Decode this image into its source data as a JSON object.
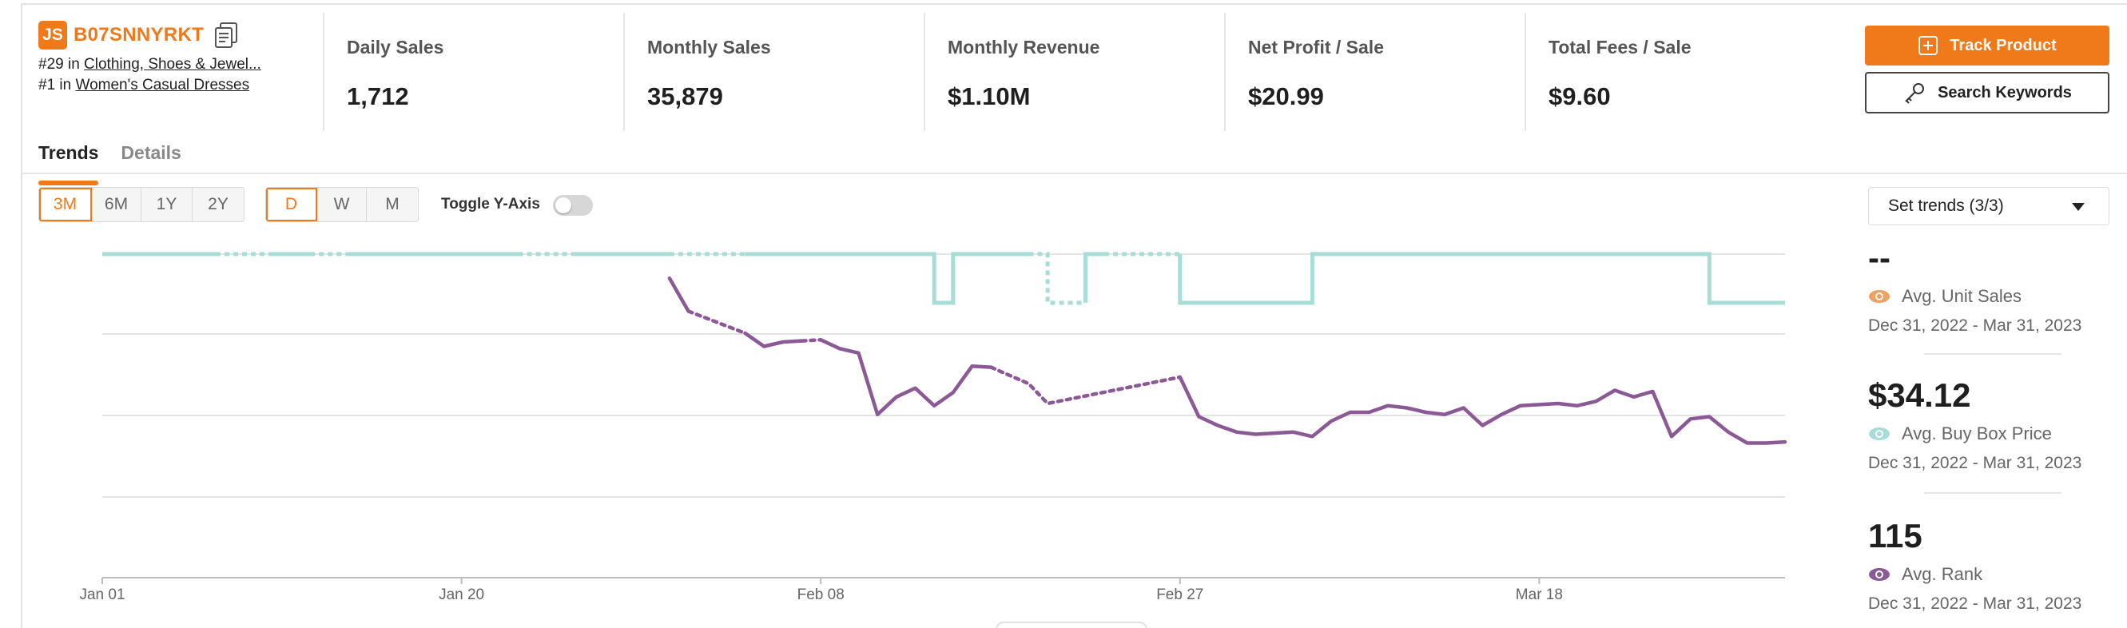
{
  "product": {
    "logo": "JS",
    "asin": "B07SNNYRKT",
    "rank1_prefix": "#29 in ",
    "rank1_category": "Clothing, Shoes & Jewel...",
    "rank2_prefix": "#1 in ",
    "rank2_category": "Women's Casual Dresses"
  },
  "metrics": [
    {
      "label": "Daily Sales",
      "value": "1,712"
    },
    {
      "label": "Monthly Sales",
      "value": "35,879"
    },
    {
      "label": "Monthly Revenue",
      "value": "$1.10M"
    },
    {
      "label": "Net Profit / Sale",
      "value": "$20.99"
    },
    {
      "label": "Total Fees / Sale",
      "value": "$9.60"
    }
  ],
  "actions": {
    "track": "Track Product",
    "search": "Search Keywords"
  },
  "tabs": [
    {
      "label": "Trends",
      "active": true
    },
    {
      "label": "Details",
      "active": false
    }
  ],
  "range_options": [
    "3M",
    "6M",
    "1Y",
    "2Y"
  ],
  "range_selected": "3M",
  "interval_options": [
    "D",
    "W",
    "M"
  ],
  "interval_selected": "D",
  "toggle_label": "Toggle Y-Axis",
  "trends_dropdown": "Set trends (3/3)",
  "stats": [
    {
      "value": "--",
      "name": "Avg. Unit Sales",
      "range": "Dec 31, 2022 - Mar 31, 2023",
      "color": "#f0a060"
    },
    {
      "value": "$34.12",
      "name": "Avg. Buy Box Price",
      "range": "Dec 31, 2022 - Mar 31, 2023",
      "color": "#a8dcd6"
    },
    {
      "value": "115",
      "name": "Avg. Rank",
      "range": "Dec 31, 2022 - Mar 31, 2023",
      "color": "#8b5a96"
    }
  ],
  "colors": {
    "accent": "#f07a1a",
    "price": "#a8dcd6",
    "rank": "#8b5a96"
  },
  "chart_data": {
    "type": "line",
    "x_tick_labels": [
      "Jan 01",
      "Jan 20",
      "Feb 08",
      "Feb 27",
      "Mar 18"
    ],
    "x_range": [
      "2023-01-01",
      "2023-03-31"
    ],
    "grid": true,
    "series": [
      {
        "name": "Avg. Buy Box Price",
        "color": "#a8dcd6",
        "step": true,
        "segments": [
          {
            "dashed": false,
            "points": [
              [
                "2023-01-01",
                1
              ],
              [
                "2023-01-07",
                1
              ]
            ]
          },
          {
            "dashed": true,
            "points": [
              [
                "2023-01-07",
                1
              ],
              [
                "2023-01-10",
                1
              ]
            ]
          },
          {
            "dashed": false,
            "points": [
              [
                "2023-01-10",
                1
              ],
              [
                "2023-01-12",
                1
              ]
            ]
          },
          {
            "dashed": true,
            "points": [
              [
                "2023-01-12",
                1
              ],
              [
                "2023-01-14",
                1
              ]
            ]
          },
          {
            "dashed": false,
            "points": [
              [
                "2023-01-14",
                1
              ],
              [
                "2023-01-23",
                1
              ]
            ]
          },
          {
            "dashed": true,
            "points": [
              [
                "2023-01-23",
                1
              ],
              [
                "2023-01-26",
                1
              ]
            ]
          },
          {
            "dashed": false,
            "points": [
              [
                "2023-01-26",
                1
              ],
              [
                "2023-01-31",
                1
              ]
            ]
          },
          {
            "dashed": true,
            "points": [
              [
                "2023-01-31",
                1
              ],
              [
                "2023-02-04",
                1
              ]
            ]
          },
          {
            "dashed": false,
            "points": [
              [
                "2023-02-04",
                1
              ],
              [
                "2023-02-14",
                1
              ],
              [
                "2023-02-14",
                0
              ],
              [
                "2023-02-15",
                0
              ],
              [
                "2023-02-15",
                1
              ],
              [
                "2023-02-19",
                1
              ]
            ]
          },
          {
            "dashed": true,
            "points": [
              [
                "2023-02-19",
                1
              ],
              [
                "2023-02-20",
                1
              ],
              [
                "2023-02-20",
                0
              ],
              [
                "2023-02-22",
                0
              ]
            ]
          },
          {
            "dashed": false,
            "points": [
              [
                "2023-02-22",
                0
              ],
              [
                "2023-02-22",
                1
              ],
              [
                "2023-02-23",
                1
              ]
            ]
          },
          {
            "dashed": true,
            "points": [
              [
                "2023-02-23",
                1
              ],
              [
                "2023-02-27",
                1
              ]
            ]
          },
          {
            "dashed": false,
            "points": [
              [
                "2023-02-27",
                1
              ],
              [
                "2023-02-27",
                0
              ],
              [
                "2023-03-06",
                0
              ],
              [
                "2023-03-06",
                1
              ],
              [
                "2023-03-27",
                1
              ],
              [
                "2023-03-27",
                0
              ],
              [
                "2023-03-31",
                0
              ]
            ]
          }
        ]
      },
      {
        "name": "Avg. Rank",
        "color": "#8b5a96",
        "segments": [
          {
            "dashed": false,
            "points": [
              [
                "2023-01-31",
                157
              ],
              [
                "2023-02-01",
                142
              ]
            ]
          },
          {
            "dashed": true,
            "points": [
              [
                "2023-02-01",
                142
              ],
              [
                "2023-02-04",
                132
              ]
            ]
          },
          {
            "dashed": false,
            "points": [
              [
                "2023-02-04",
                132
              ],
              [
                "2023-02-05",
                126
              ],
              [
                "2023-02-06",
                128
              ],
              [
                "2023-02-07",
                128.5
              ]
            ]
          },
          {
            "dashed": true,
            "points": [
              [
                "2023-02-07",
                128.5
              ],
              [
                "2023-02-08",
                129
              ]
            ]
          },
          {
            "dashed": false,
            "points": [
              [
                "2023-02-08",
                129
              ],
              [
                "2023-02-09",
                125
              ],
              [
                "2023-02-10",
                123
              ],
              [
                "2023-02-11",
                95
              ],
              [
                "2023-02-12",
                103
              ],
              [
                "2023-02-13",
                107
              ],
              [
                "2023-02-14",
                99
              ],
              [
                "2023-02-15",
                105
              ],
              [
                "2023-02-16",
                117
              ],
              [
                "2023-02-17",
                116.5
              ]
            ]
          },
          {
            "dashed": true,
            "points": [
              [
                "2023-02-17",
                116.5
              ],
              [
                "2023-02-19",
                109
              ],
              [
                "2023-02-20",
                100
              ],
              [
                "2023-02-27",
                112
              ]
            ]
          },
          {
            "dashed": false,
            "points": [
              [
                "2023-02-27",
                112
              ],
              [
                "2023-02-28",
                94
              ],
              [
                "2023-03-01",
                90
              ],
              [
                "2023-03-02",
                87
              ],
              [
                "2023-03-03",
                86
              ],
              [
                "2023-03-04",
                86.5
              ],
              [
                "2023-03-05",
                87
              ],
              [
                "2023-03-06",
                85
              ],
              [
                "2023-03-07",
                92
              ],
              [
                "2023-03-08",
                96
              ],
              [
                "2023-03-09",
                96
              ],
              [
                "2023-03-10",
                99
              ],
              [
                "2023-03-11",
                98
              ],
              [
                "2023-03-12",
                96
              ],
              [
                "2023-03-13",
                95
              ],
              [
                "2023-03-14",
                98
              ],
              [
                "2023-03-15",
                90
              ],
              [
                "2023-03-16",
                95
              ],
              [
                "2023-03-17",
                99
              ],
              [
                "2023-03-18",
                99.5
              ],
              [
                "2023-03-19",
                100
              ],
              [
                "2023-03-20",
                99
              ],
              [
                "2023-03-21",
                101
              ],
              [
                "2023-03-22",
                106
              ],
              [
                "2023-03-23",
                103
              ],
              [
                "2023-03-24",
                105.5
              ],
              [
                "2023-03-25",
                85
              ],
              [
                "2023-03-26",
                93
              ],
              [
                "2023-03-27",
                94
              ],
              [
                "2023-03-28",
                87
              ],
              [
                "2023-03-29",
                82
              ],
              [
                "2023-03-30",
                82
              ],
              [
                "2023-03-31",
                82.5
              ]
            ]
          }
        ]
      }
    ]
  }
}
